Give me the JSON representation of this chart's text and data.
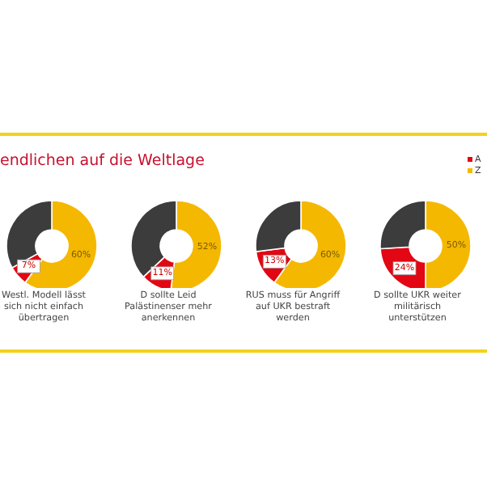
{
  "chart_data": [
    {
      "type": "donut",
      "title": "endlichen auf die Weltlage",
      "xlabel": "Westl. Modell lässt sich nicht einfach übertragen",
      "categories": [
        "Z",
        "A",
        null
      ],
      "values": [
        60,
        7,
        33
      ],
      "colors": [
        "#f5b800",
        "#e30613",
        "#3c3c3c"
      ],
      "value_labels": [
        "60%",
        "7%",
        null
      ],
      "legend": "top right"
    },
    {
      "type": "donut",
      "xlabel": "D sollte Leid Palästinenser mehr anerkennen",
      "categories": [
        null,
        null,
        null
      ],
      "values": [
        52,
        11,
        37
      ],
      "colors": [
        "#f5b800",
        "#e30613",
        "#3c3c3c"
      ],
      "value_labels": [
        "52%",
        "11%",
        null
      ]
    },
    {
      "type": "donut",
      "xlabel": "RUS muss für Angriff auf UKR bestraft werden",
      "categories": [
        null,
        null,
        null
      ],
      "values": [
        60,
        13,
        27
      ],
      "colors": [
        "#f5b800",
        "#e30613",
        "#3c3c3c"
      ],
      "value_labels": [
        "60%",
        "13%",
        null
      ]
    },
    {
      "type": "donut",
      "xlabel": "D sollte UKR weiter militärisch unterstützen",
      "categories": [
        null,
        null,
        null
      ],
      "values": [
        50,
        24,
        26
      ],
      "colors": [
        "#f5b800",
        "#e30613",
        "#3c3c3c"
      ],
      "value_labels": [
        "50%",
        "24%",
        null
      ]
    }
  ]
}
